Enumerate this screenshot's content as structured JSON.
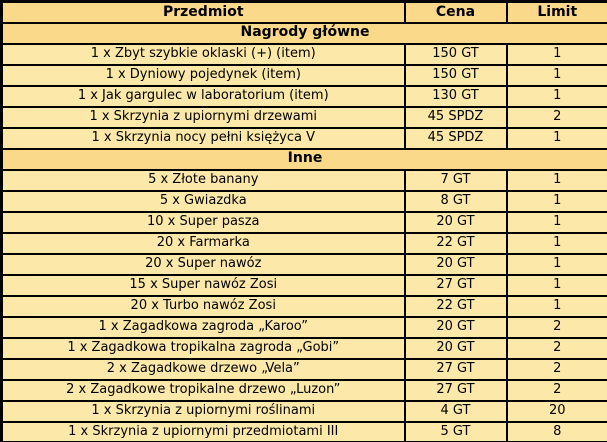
{
  "table": {
    "columns": [
      "Przedmiot",
      "Cena",
      "Limit"
    ],
    "sections": [
      {
        "title": "Nagrody główne",
        "rows": [
          [
            "1 x Zbyt szybkie oklaski (+) (item)",
            "150 GT",
            "1"
          ],
          [
            "1 x Dyniowy pojedynek (item)",
            "150 GT",
            "1"
          ],
          [
            "1 x Jak gargulec w laboratorium (item)",
            "130 GT",
            "1"
          ],
          [
            "1 x Skrzynia z upiornymi drzewami",
            "45 SPDZ",
            "2"
          ],
          [
            "1 x Skrzynia nocy pełni księżyca V",
            "45 SPDZ",
            "1"
          ]
        ]
      },
      {
        "title": "Inne",
        "rows": [
          [
            "5 x Złote banany",
            "7 GT",
            "1"
          ],
          [
            "5 x Gwiazdka",
            "8 GT",
            "1"
          ],
          [
            "10 x Super pasza",
            "20 GT",
            "1"
          ],
          [
            "20 x Farmarka",
            "22 GT",
            "1"
          ],
          [
            "20 x Super nawóz",
            "20 GT",
            "1"
          ],
          [
            "15 x Super nawóz Zosi",
            "27 GT",
            "1"
          ],
          [
            "20 x Turbo nawóz Zosi",
            "22 GT",
            "1"
          ],
          [
            "1 x Zagadkowa zagroda „Karoo”",
            "20 GT",
            "2"
          ],
          [
            "1 x Zagadkowa tropikalna zagroda „Gobi”",
            "20 GT",
            "2"
          ],
          [
            "2 x Zagadkowe drzewo „Vela”",
            "27 GT",
            "2"
          ],
          [
            "2 x Zagadkowe tropikalne drzewo „Luzon”",
            "27 GT",
            "2"
          ],
          [
            "1 x Skrzynia z upiornymi roślinami",
            "4 GT",
            "20"
          ],
          [
            "1 x Skrzynia z upiornymi przedmiotami III",
            "5 GT",
            "8"
          ]
        ]
      }
    ]
  },
  "colors": {
    "header_bg": "#fbd98a",
    "row_bg": "#fce8a8",
    "border": "#000000",
    "text": "#000000"
  }
}
